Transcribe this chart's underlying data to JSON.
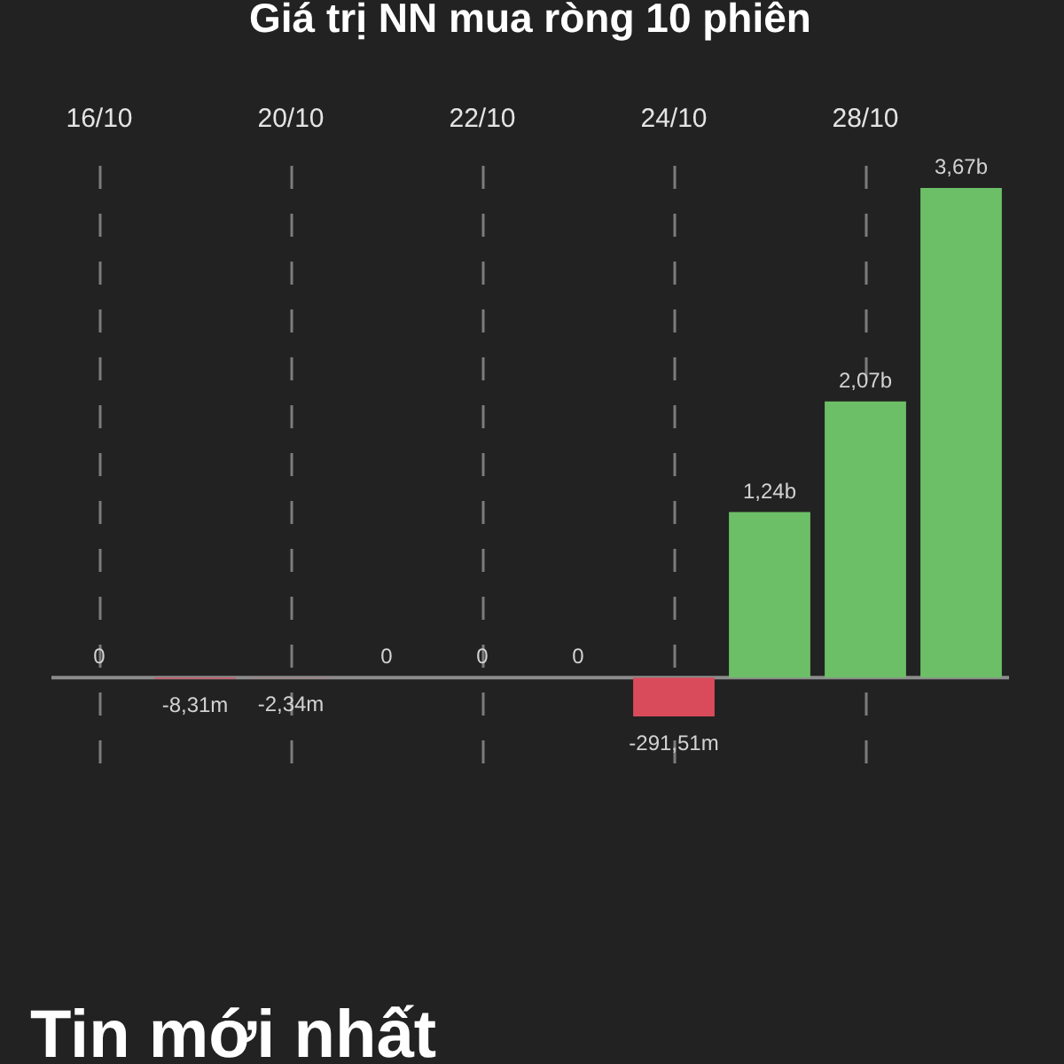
{
  "chart_data": {
    "type": "bar",
    "title": "Giá trị NN mua ròng 10 phiên",
    "categories": [
      "16/10",
      null,
      "20/10",
      null,
      "22/10",
      null,
      "24/10",
      null,
      "28/10",
      null
    ],
    "values": [
      0,
      -8310000,
      -2340000,
      0,
      0,
      0,
      -291510000,
      1240000000,
      2070000000,
      3670000000
    ],
    "colors": [
      "#6dbf67",
      "#d94b5b",
      "#d94b5b",
      "#6dbf67",
      "#6dbf67",
      "#6dbf67",
      "#d94b5b",
      "#6dbf67",
      "#6dbf67",
      "#6dbf67"
    ],
    "value_labels": [
      "0",
      "-8,31m",
      "-2,34m",
      "0",
      "0",
      "0",
      "-291,51m",
      "1,24b",
      "2,07b",
      "3,67b"
    ],
    "ref_lines": [
      {
        "axis": "y",
        "value": 0,
        "color": "#8c8c8c"
      }
    ],
    "grid": "x",
    "tick_labels": "x",
    "annotations": [
      "Tin mới nhất"
    ]
  }
}
